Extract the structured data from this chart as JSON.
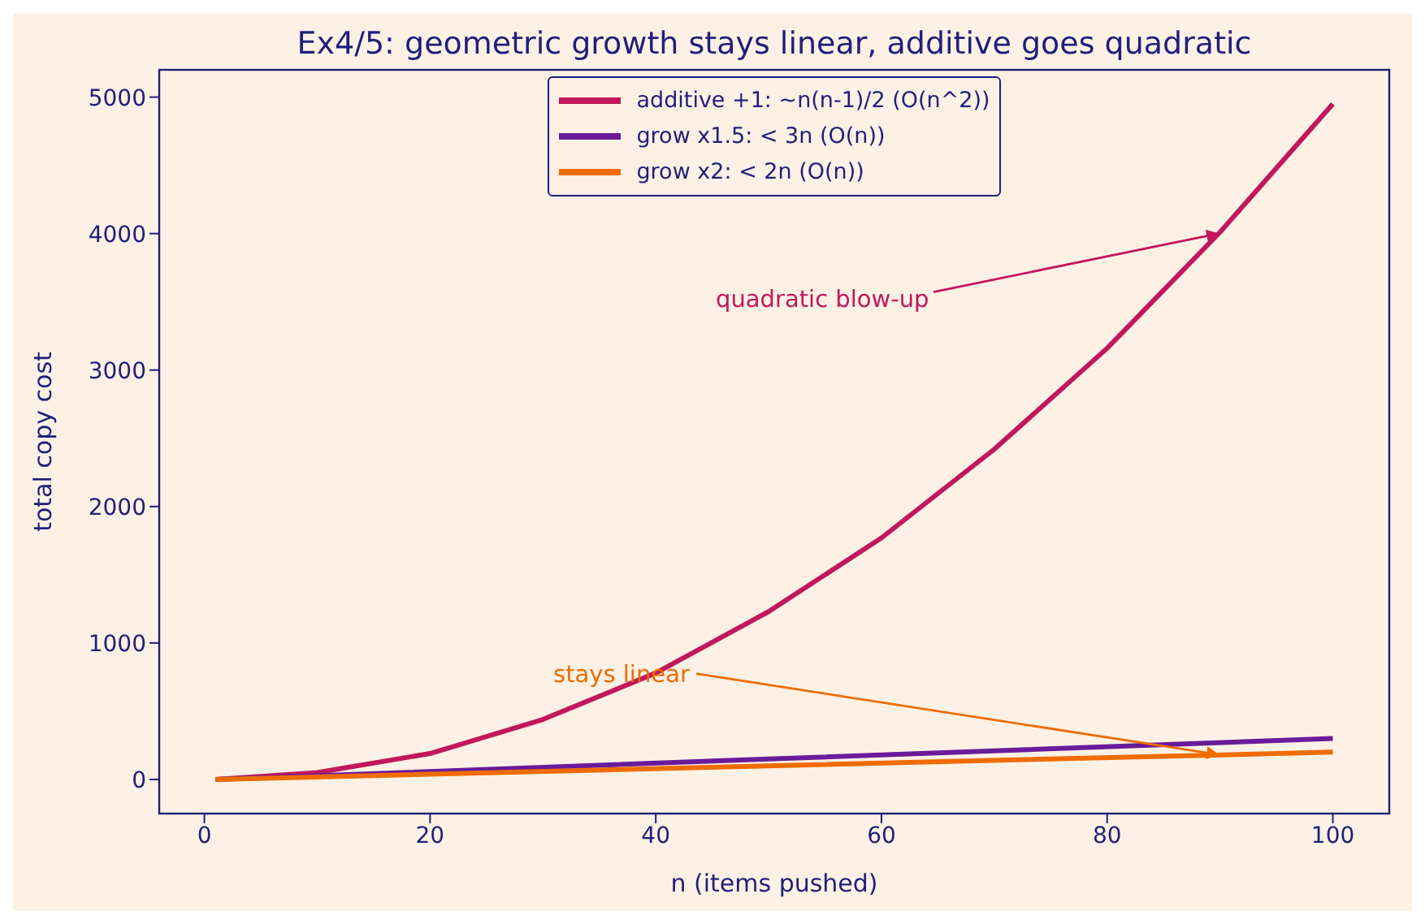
{
  "chart_data": {
    "type": "line",
    "title": "Ex4/5: geometric growth stays linear, additive goes quadratic",
    "xlabel": "n (items pushed)",
    "ylabel": "total copy cost",
    "series": [
      {
        "name": "additive +1: ~n(n-1)/2  (O(n^2))",
        "color": "#c2185b",
        "x": [
          1,
          10,
          20,
          30,
          40,
          50,
          60,
          70,
          80,
          90,
          100
        ],
        "values": [
          0,
          50,
          190,
          440,
          780,
          1230,
          1770,
          2420,
          3160,
          4010,
          4950
        ]
      },
      {
        "name": "grow x1.5: < 3n  (O(n))",
        "color": "#6a1b9a",
        "x": [
          1,
          50,
          100
        ],
        "values": [
          0,
          150,
          300
        ]
      },
      {
        "name": "grow x2: < 2n  (O(n))",
        "color": "#ef6c00",
        "x": [
          1,
          50,
          100
        ],
        "values": [
          0,
          100,
          200
        ]
      }
    ],
    "xlim": [
      -4,
      105
    ],
    "xticks": [
      0,
      20,
      40,
      60,
      80,
      100
    ],
    "ylim": [
      -250,
      5200
    ],
    "yticks": [
      0,
      1000,
      2000,
      3000,
      4000,
      5000
    ],
    "grid": false,
    "legend": "top",
    "annotations": [
      "quadratic blow-up",
      "stays linear"
    ]
  }
}
